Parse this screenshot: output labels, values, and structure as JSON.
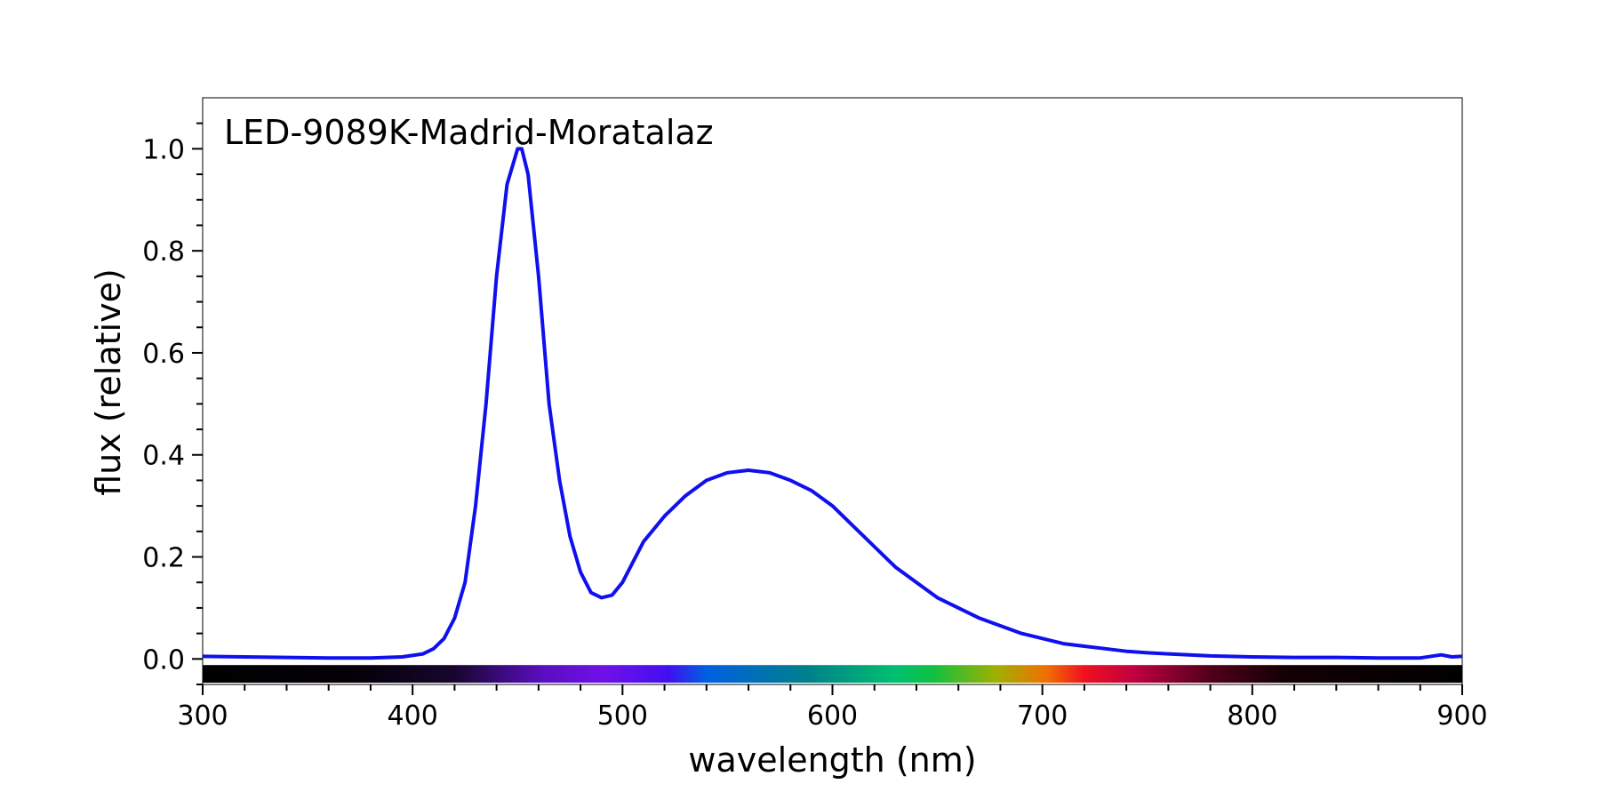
{
  "chart_data": {
    "type": "line",
    "title": "LED-9089K-Madrid-Moratalaz",
    "xlabel": "wavelength (nm)",
    "ylabel": "flux (relative)",
    "xlim": [
      300,
      900
    ],
    "ylim": [
      -0.05,
      1.1
    ],
    "x_ticks": [
      300,
      400,
      500,
      600,
      700,
      800,
      900
    ],
    "x_tick_labels": [
      "300",
      "400",
      "500",
      "600",
      "700",
      "800",
      "900"
    ],
    "y_ticks": [
      0.0,
      0.2,
      0.4,
      0.6,
      0.8,
      1.0
    ],
    "y_tick_labels": [
      "0.0",
      "0.2",
      "0.4",
      "0.6",
      "0.8",
      "1.0"
    ],
    "grid": false,
    "line_color": "#1010ee",
    "spectrum_bar": true,
    "series": [
      {
        "x": [
          300,
          320,
          340,
          360,
          380,
          395,
          405,
          410,
          415,
          420,
          425,
          430,
          435,
          440,
          445,
          450,
          452,
          455,
          460,
          465,
          470,
          475,
          480,
          485,
          490,
          495,
          500,
          505,
          510,
          520,
          530,
          540,
          550,
          560,
          570,
          580,
          590,
          600,
          610,
          620,
          630,
          640,
          650,
          660,
          670,
          680,
          690,
          700,
          710,
          720,
          730,
          740,
          750,
          760,
          780,
          800,
          820,
          840,
          860,
          880,
          890,
          895,
          900
        ],
        "y": [
          0.005,
          0.004,
          0.003,
          0.002,
          0.002,
          0.004,
          0.01,
          0.02,
          0.04,
          0.08,
          0.15,
          0.3,
          0.5,
          0.75,
          0.93,
          1.0,
          1.0,
          0.95,
          0.75,
          0.5,
          0.35,
          0.24,
          0.17,
          0.13,
          0.12,
          0.125,
          0.15,
          0.19,
          0.23,
          0.28,
          0.32,
          0.35,
          0.365,
          0.37,
          0.365,
          0.35,
          0.33,
          0.3,
          0.26,
          0.22,
          0.18,
          0.15,
          0.12,
          0.1,
          0.08,
          0.065,
          0.05,
          0.04,
          0.03,
          0.025,
          0.02,
          0.015,
          0.012,
          0.01,
          0.006,
          0.004,
          0.003,
          0.003,
          0.002,
          0.002,
          0.008,
          0.004,
          0.005
        ]
      }
    ]
  }
}
